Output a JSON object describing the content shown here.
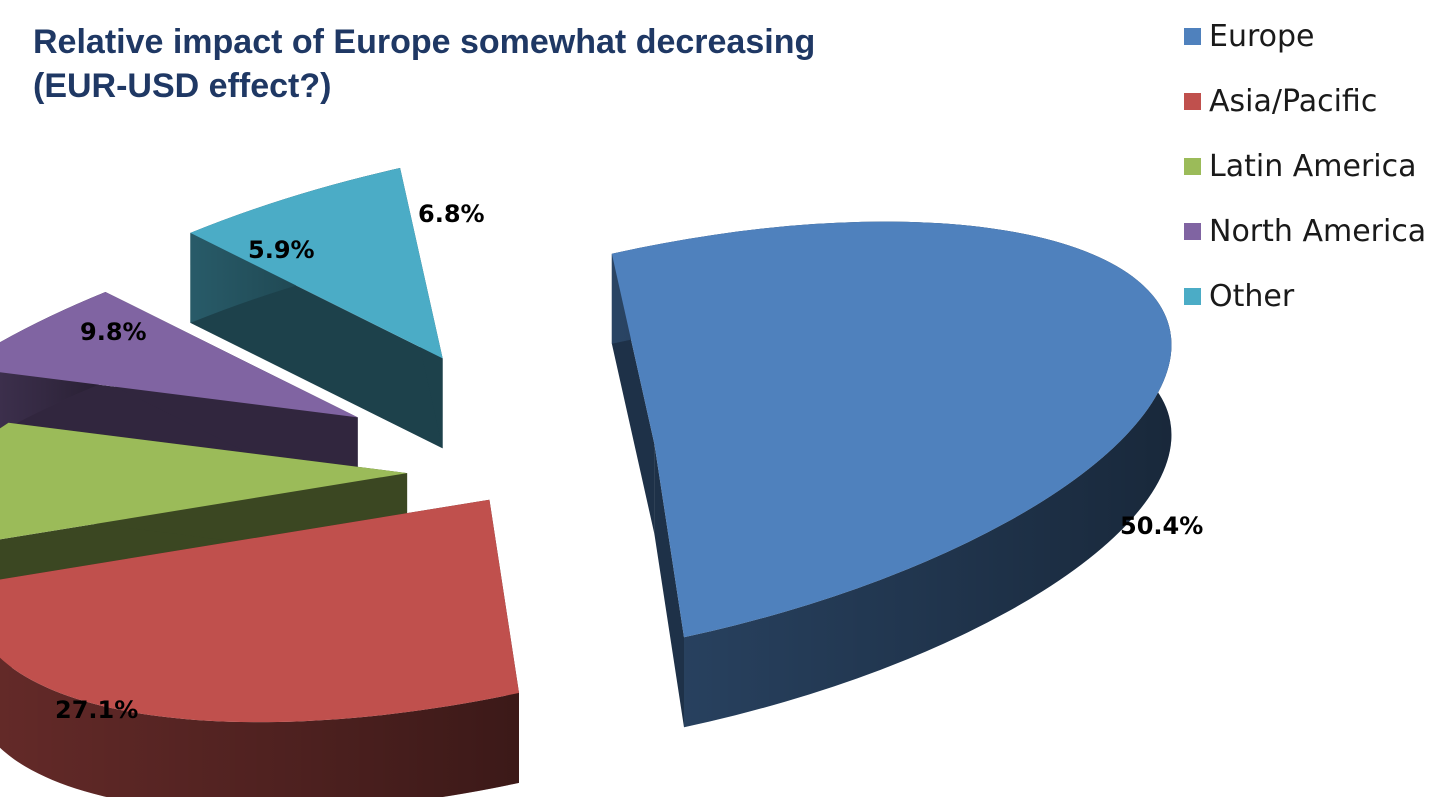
{
  "chart_data": {
    "type": "pie",
    "title_lines": [
      "Relative impact of Europe somewhat decreasing",
      "(EUR-USD effect?)"
    ],
    "categories": [
      "Europe",
      "Asia/Pacific",
      "Latin America",
      "North America",
      "Other"
    ],
    "values": [
      50.4,
      27.1,
      9.8,
      5.9,
      6.8
    ],
    "data_labels": [
      "50.4%",
      "27.1%",
      "9.8%",
      "5.9%",
      "6.8%"
    ],
    "colors": [
      "#4F81BD",
      "#C0504D",
      "#9BBB59",
      "#8064A2",
      "#4BACC6"
    ],
    "exploded": true,
    "three_d": true,
    "legend_position": "top-right"
  }
}
